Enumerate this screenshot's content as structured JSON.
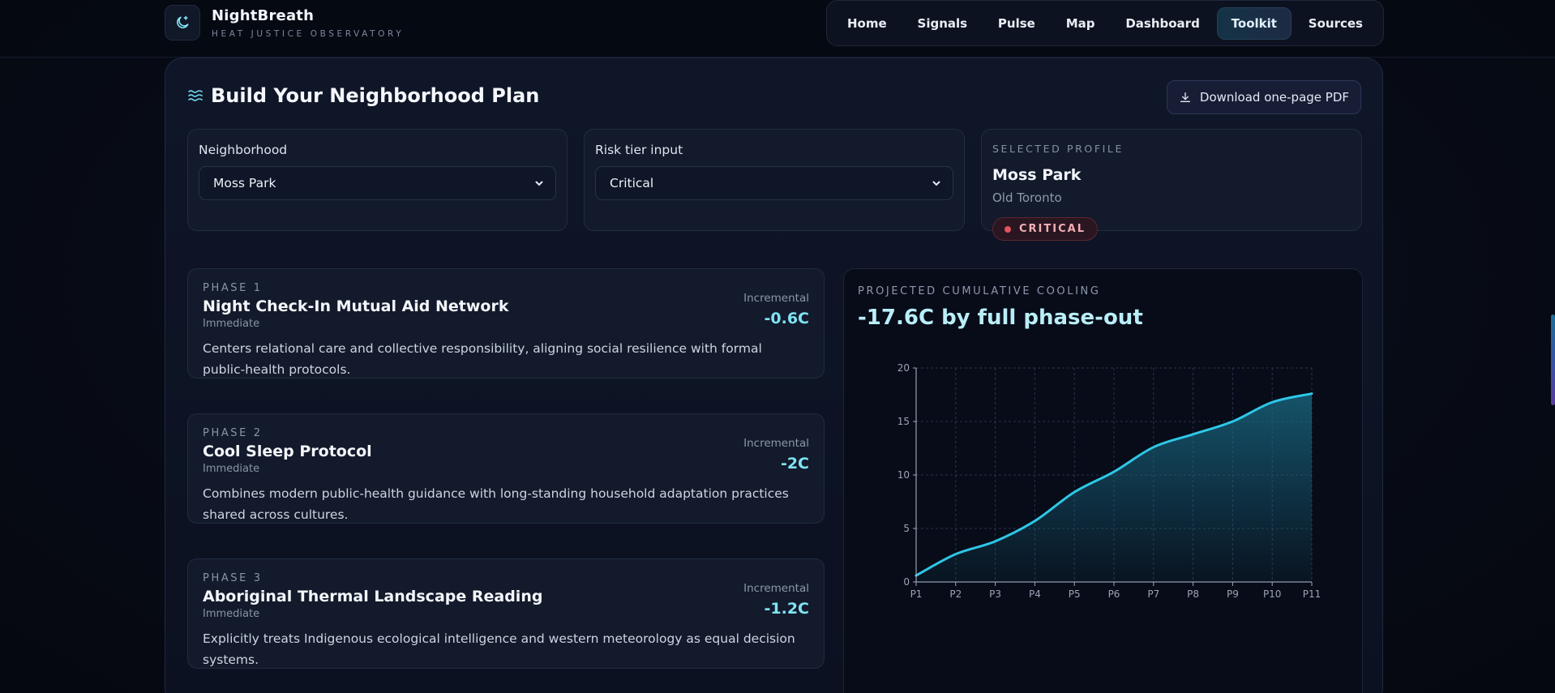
{
  "brand": {
    "title": "NightBreath",
    "subtitle": "HEAT JUSTICE OBSERVATORY",
    "icon": "moon-sparkle-icon"
  },
  "nav": {
    "items": [
      {
        "label": "Home",
        "active": false
      },
      {
        "label": "Signals",
        "active": false
      },
      {
        "label": "Pulse",
        "active": false
      },
      {
        "label": "Map",
        "active": false
      },
      {
        "label": "Dashboard",
        "active": false
      },
      {
        "label": "Toolkit",
        "active": true
      },
      {
        "label": "Sources",
        "active": false
      }
    ]
  },
  "plan": {
    "title": "Build Your Neighborhood Plan",
    "title_icon": "waves-icon",
    "download_label": "Download one-page PDF",
    "download_icon": "download-icon"
  },
  "neighborhood": {
    "label": "Neighborhood",
    "value": "Moss Park"
  },
  "risk_tier": {
    "label": "Risk tier input",
    "value": "Critical"
  },
  "profile": {
    "kicker": "SELECTED PROFILE",
    "name": "Moss Park",
    "region": "Old Toronto",
    "badge": "CRITICAL",
    "badge_color": "#e0545f"
  },
  "phases": [
    {
      "kicker": "PHASE 1",
      "title": "Night Check-In Mutual Aid Network",
      "timing": "Immediate",
      "inc_label": "Incremental",
      "inc_value": "-0.6C",
      "description": "Centers relational care and collective responsibility, aligning social resilience with formal public-health protocols."
    },
    {
      "kicker": "PHASE 2",
      "title": "Cool Sleep Protocol",
      "timing": "Immediate",
      "inc_label": "Incremental",
      "inc_value": "-2C",
      "description": "Combines modern public-health guidance with long-standing household adaptation practices shared across cultures."
    },
    {
      "kicker": "PHASE 3",
      "title": "Aboriginal Thermal Landscape Reading",
      "timing": "Immediate",
      "inc_label": "Incremental",
      "inc_value": "-1.2C",
      "description": "Explicitly treats Indigenous ecological intelligence and western meteorology as equal decision systems."
    }
  ],
  "chart": {
    "kicker": "PROJECTED CUMULATIVE COOLING",
    "headline": "-17.6C by full phase-out"
  },
  "chart_data": {
    "type": "area",
    "title": "",
    "xlabel": "",
    "ylabel": "",
    "categories": [
      "P1",
      "P2",
      "P3",
      "P4",
      "P5",
      "P6",
      "P7",
      "P8",
      "P9",
      "P10",
      "P11"
    ],
    "series": [
      {
        "values": [
          0.6,
          2.6,
          3.8,
          5.7,
          8.4,
          10.3,
          12.6,
          13.8,
          15.0,
          16.8,
          17.6
        ]
      }
    ],
    "ylim": [
      0,
      20
    ],
    "yticks": [
      "0",
      "5",
      "10",
      "15",
      "20"
    ],
    "grid": true,
    "line_color": "#2ec7e6",
    "fill_color": "#1a6b86"
  }
}
